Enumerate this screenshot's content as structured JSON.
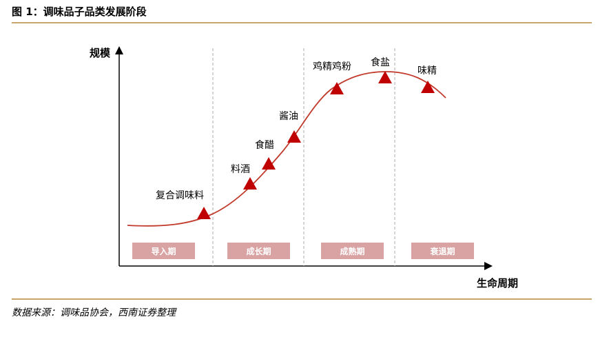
{
  "figure": {
    "title": "图 1：调味品子品类发展阶段",
    "source": "数据来源：调味品协会，西南证券整理"
  },
  "axes": {
    "y_label": "规模",
    "x_label": "生命周期"
  },
  "stages": [
    "导入期",
    "成长期",
    "成熟期",
    "衰退期"
  ],
  "categories": [
    "复合调味料",
    "料酒",
    "食醋",
    "酱油",
    "鸡精鸡粉",
    "食盐",
    "味精"
  ],
  "colors": {
    "curve": "#c0392b",
    "marker": "#c00000",
    "stage_box": "#d9a3a3",
    "rule": "#c9a56b",
    "divider": "#aaaaaa"
  }
}
